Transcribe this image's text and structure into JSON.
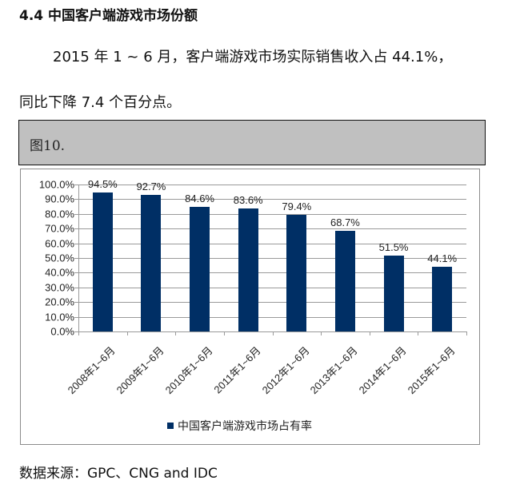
{
  "document": {
    "heading": "4.4 中国客户端游戏市场份额",
    "paragraph_line1": "2015 年 1 ~ 6 月，客户端游戏市场实际销售收入占 44.1%，",
    "paragraph_line2": "同比下降 7.4 个百分点。",
    "figure_caption": "图10.",
    "source": "数据来源：GPC、CNG and IDC"
  },
  "colors": {
    "bar": "#002f65",
    "caption_bg": "#c0c0c0",
    "gridline": "#9a9a9a"
  },
  "chart_data": {
    "type": "bar",
    "title": "",
    "xlabel": "",
    "ylabel": "",
    "categories": [
      "2008年1~6月",
      "2009年1~6月",
      "2010年1~6月",
      "2011年1~6月",
      "2012年1~6月",
      "2013年1~6月",
      "2014年1~6月",
      "2015年1~6月"
    ],
    "series": [
      {
        "name": "中国客户端游戏市场占有率",
        "values": [
          94.5,
          92.7,
          84.6,
          83.6,
          79.4,
          68.7,
          51.5,
          44.1
        ],
        "labels": [
          "94.5%",
          "92.7%",
          "84.6%",
          "83.6%",
          "79.4%",
          "68.7%",
          "51.5%",
          "44.1%"
        ]
      }
    ],
    "ylim": [
      0,
      100
    ],
    "yticks": [
      "0.0%",
      "10.0%",
      "20.0%",
      "30.0%",
      "40.0%",
      "50.0%",
      "60.0%",
      "70.0%",
      "80.0%",
      "90.0%",
      "100.0%"
    ],
    "grid": true,
    "legend_position": "bottom",
    "data_labels": true
  }
}
